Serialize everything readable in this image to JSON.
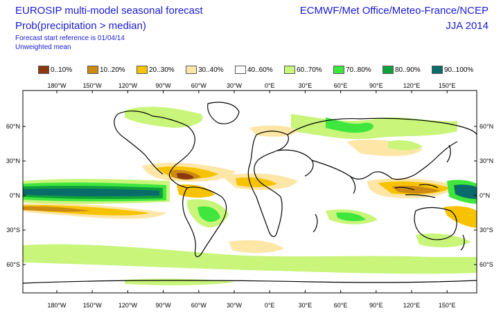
{
  "header": {
    "title": "EUROSIP multi-model seasonal forecast",
    "subtitle": "Prob(precipitation > median)",
    "note_start": "Forecast start reference is 01/04/14",
    "note_mean": "Unweighted mean",
    "source": "ECMWF/Met Office/Meteo-France/NCEP",
    "season": "JJA 2014"
  },
  "legend": [
    {
      "label": "0..10%",
      "color": "#8b3a0f"
    },
    {
      "label": "10..20%",
      "color": "#cc8a10"
    },
    {
      "label": "20..30%",
      "color": "#f7c300"
    },
    {
      "label": "30..40%",
      "color": "#fde6a6"
    },
    {
      "label": "40..60%",
      "color": "#ffffff"
    },
    {
      "label": "60..70%",
      "color": "#c8f57a"
    },
    {
      "label": "70..80%",
      "color": "#3ee63e"
    },
    {
      "label": "80..90%",
      "color": "#0fa03c"
    },
    {
      "label": "90..100%",
      "color": "#0a6b6b"
    }
  ],
  "axes": {
    "lon_labels": [
      "180°W",
      "150°W",
      "120°W",
      "90°W",
      "60°W",
      "30°W",
      "0°E",
      "30°E",
      "60°E",
      "90°E",
      "120°E",
      "150°E"
    ],
    "lat_labels": [
      "60°N",
      "30°N",
      "0°N",
      "30°S",
      "60°S"
    ]
  }
}
